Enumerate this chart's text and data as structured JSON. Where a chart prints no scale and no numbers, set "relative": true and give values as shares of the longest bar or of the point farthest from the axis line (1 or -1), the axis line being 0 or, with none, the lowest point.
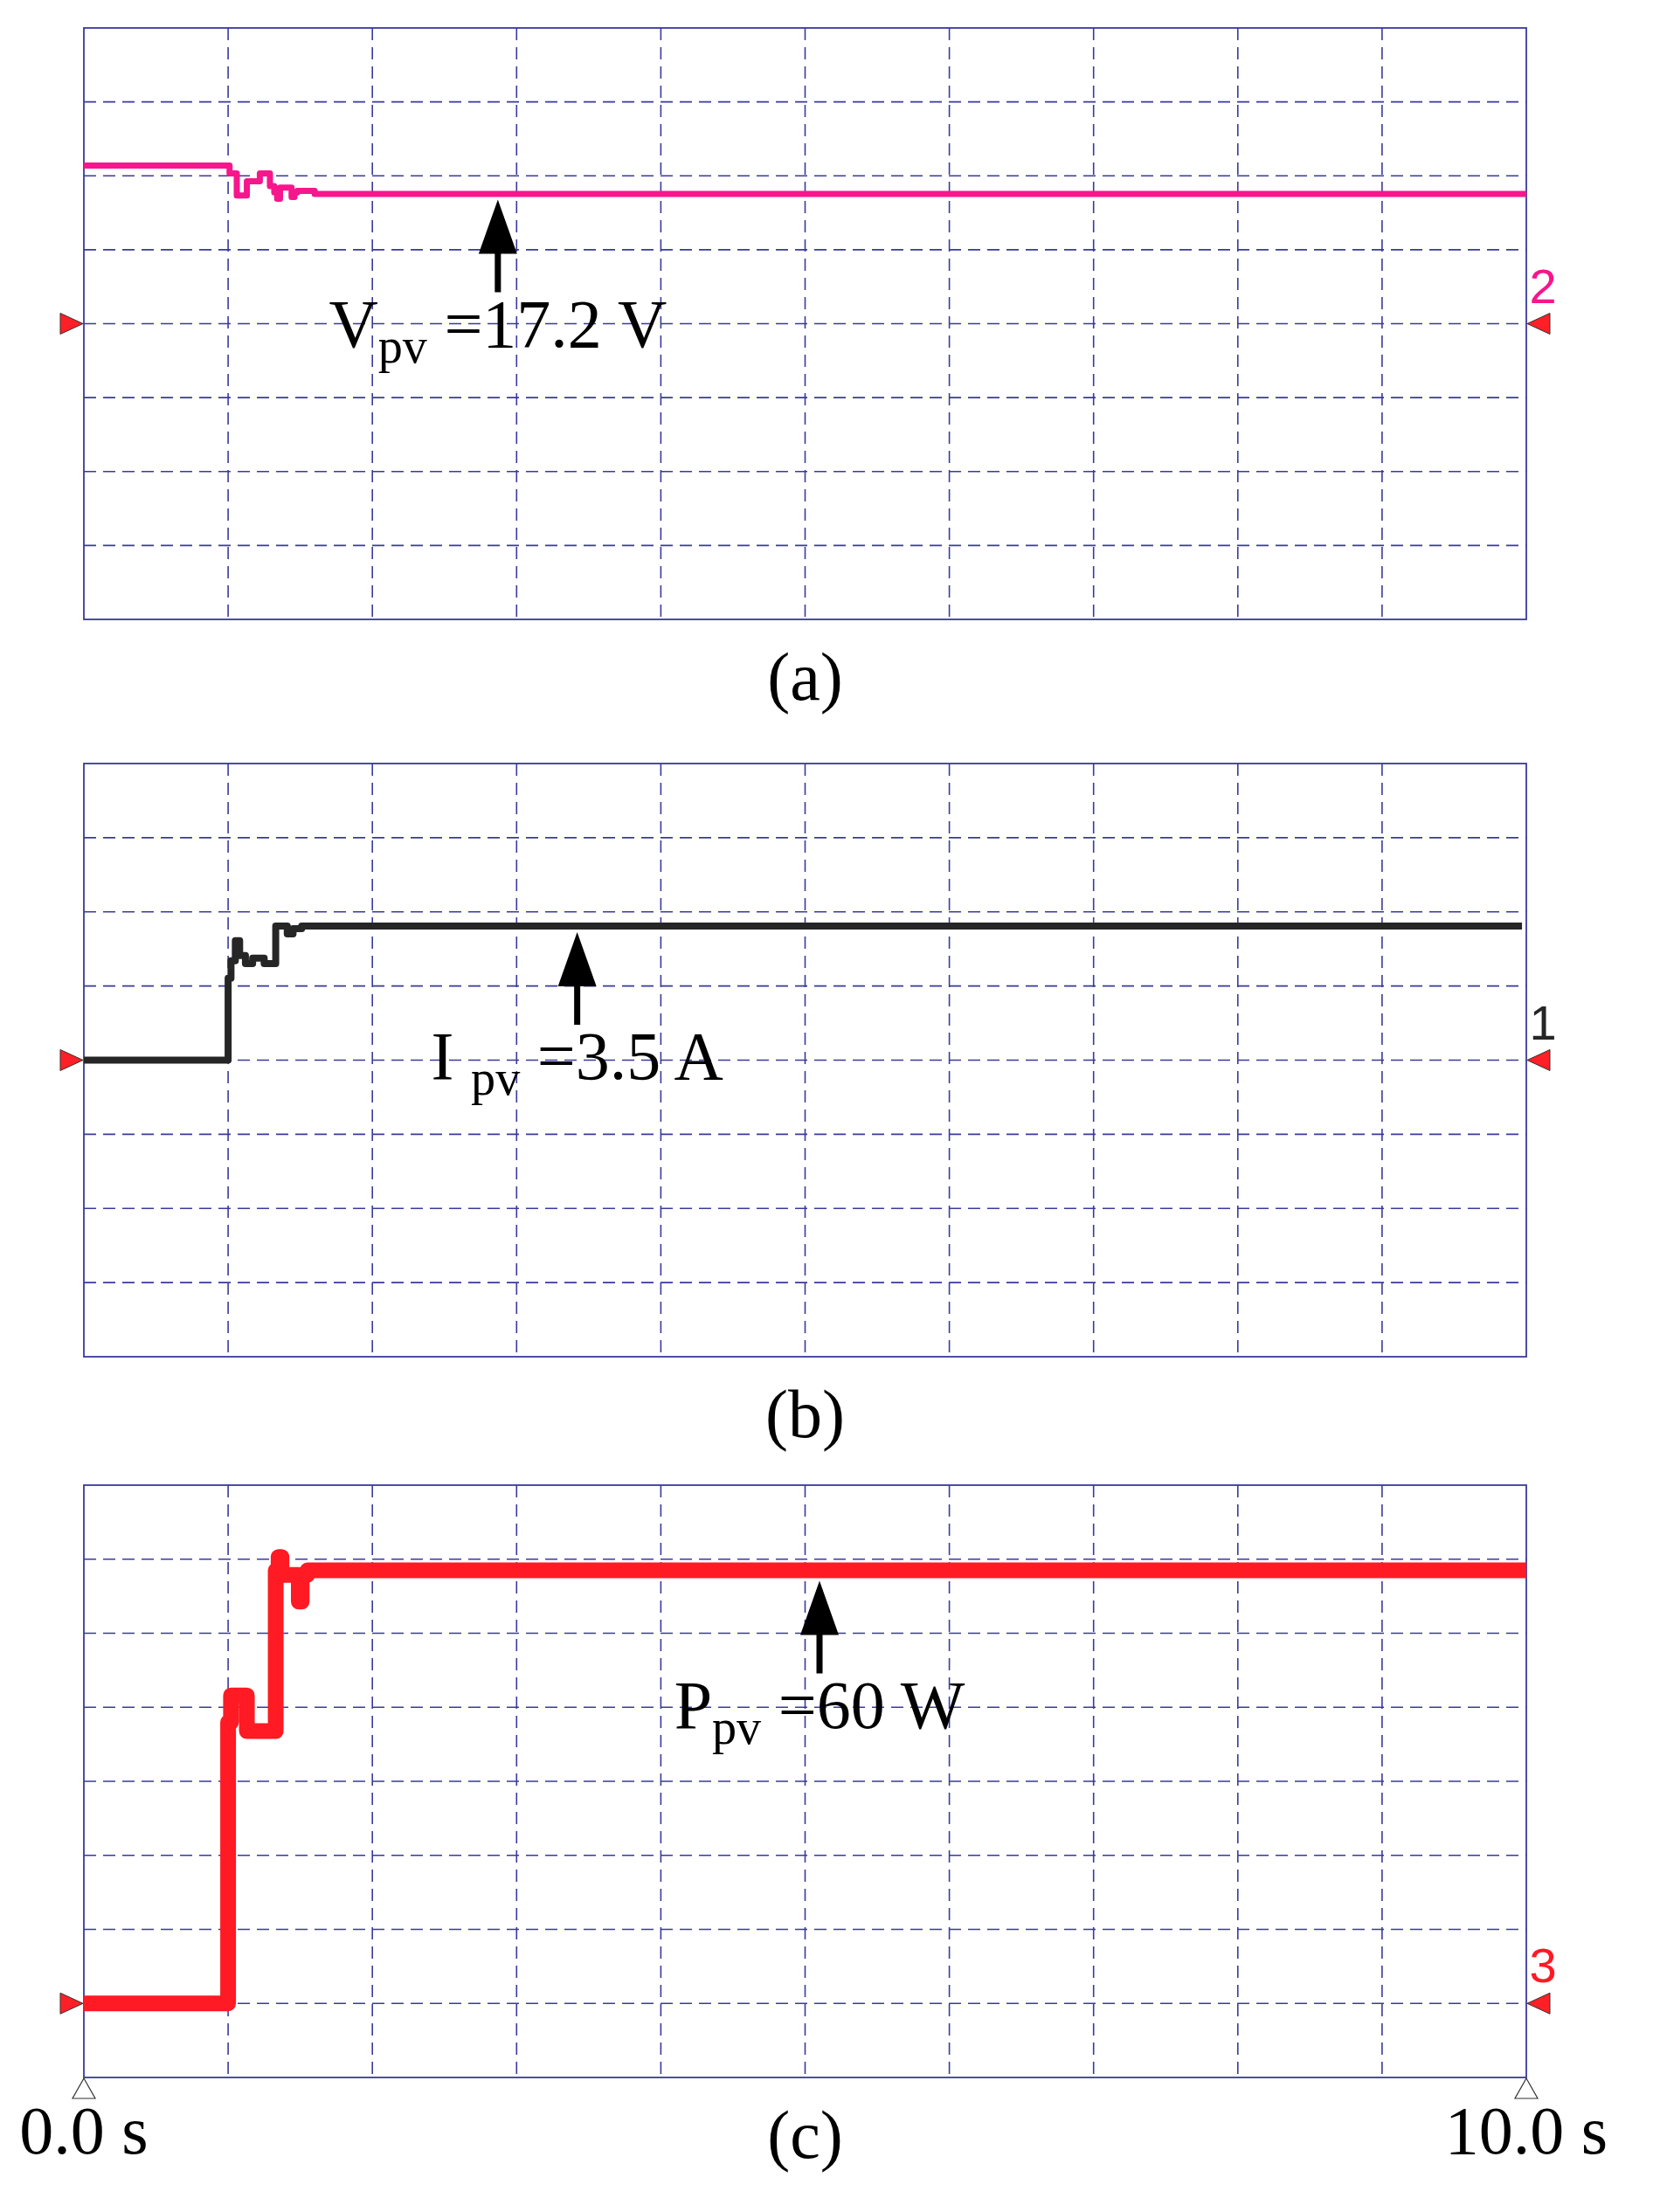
{
  "chart_data": [
    {
      "type": "step",
      "title": "(a)",
      "relative": true,
      "color": "#f8168c",
      "x": [
        0,
        1.01,
        1.06,
        1.13,
        1.22,
        1.29,
        1.32,
        1.34,
        1.36,
        1.44,
        1.46,
        1.48,
        1.6,
        10
      ],
      "values": [
        1,
        0.95,
        0.81,
        0.9,
        0.95,
        0.87,
        0.83,
        0.79,
        0.86,
        0.8,
        0.83,
        0.84,
        0.82,
        0.82
      ],
      "xlim": [
        0,
        10
      ],
      "xticks": [
        {
          "value": 0,
          "label": null
        },
        {
          "value": 1,
          "label": null
        },
        {
          "value": 2,
          "label": null
        },
        {
          "value": 3,
          "label": null
        },
        {
          "value": 4,
          "label": null
        },
        {
          "value": 5,
          "label": null
        },
        {
          "value": 6,
          "label": null
        },
        {
          "value": 7,
          "label": null
        },
        {
          "value": 8,
          "label": null
        },
        {
          "value": 9,
          "label": null
        },
        {
          "value": 10,
          "label": null
        }
      ],
      "tick_labels": false,
      "grid": true,
      "annotations": [
        {
          "text": "V$_{pv}$ =17.2 V",
          "x": 2.87,
          "y": 0.82
        },
        "2"
      ]
    },
    {
      "type": "step",
      "title": "(b)",
      "relative": true,
      "color": "#262626",
      "x": [
        0,
        1,
        1.02,
        1.05,
        1.08,
        1.12,
        1.17,
        1.25,
        1.33,
        1.41,
        1.45,
        1.51,
        9.97
      ],
      "values": [
        0,
        0.61,
        0.74,
        0.89,
        0.78,
        0.72,
        0.76,
        0.72,
        1,
        0.94,
        0.98,
        1,
        1
      ],
      "xlim": [
        0,
        10
      ],
      "xticks": [
        {
          "value": 0,
          "label": null
        },
        {
          "value": 1,
          "label": null
        },
        {
          "value": 2,
          "label": null
        },
        {
          "value": 3,
          "label": null
        },
        {
          "value": 4,
          "label": null
        },
        {
          "value": 5,
          "label": null
        },
        {
          "value": 6,
          "label": null
        },
        {
          "value": 7,
          "label": null
        },
        {
          "value": 8,
          "label": null
        },
        {
          "value": 9,
          "label": null
        },
        {
          "value": 10,
          "label": null
        }
      ],
      "tick_labels": false,
      "grid": true,
      "annotations": [
        {
          "text": "I $_{pv}$ =3.5 A",
          "x": 3.42,
          "y": 1
        },
        "1"
      ]
    },
    {
      "type": "step",
      "title": "(c)",
      "relative": true,
      "color": "#ff1a24",
      "x": [
        0,
        1,
        1.02,
        1.13,
        1.33,
        1.35,
        1.37,
        1.49,
        1.51,
        1.55,
        10
      ],
      "values": [
        0,
        0.63,
        0.69,
        0.61,
        0.97,
        1,
        0.96,
        0.9,
        0.96,
        0.97,
        0.97
      ],
      "xlim": [
        0,
        10
      ],
      "xticks": [
        {
          "value": 0,
          "label": "0.0 s"
        },
        {
          "value": 1,
          "label": null
        },
        {
          "value": 2,
          "label": null
        },
        {
          "value": 3,
          "label": null
        },
        {
          "value": 4,
          "label": null
        },
        {
          "value": 5,
          "label": null
        },
        {
          "value": 6,
          "label": null
        },
        {
          "value": 7,
          "label": null
        },
        {
          "value": 8,
          "label": null
        },
        {
          "value": 9,
          "label": null
        },
        {
          "value": 10,
          "label": "10.0 s"
        }
      ],
      "tick_labels": "x",
      "grid": true,
      "annotations": [
        {
          "text": "P$_{pv}$ =60 W",
          "x": 5.1,
          "y": 0.97
        },
        "3"
      ]
    }
  ]
}
